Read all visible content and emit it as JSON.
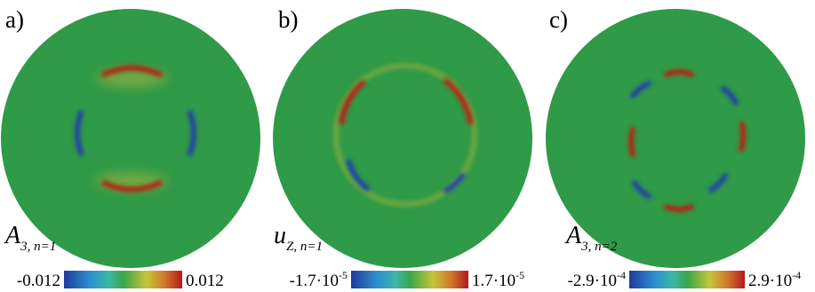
{
  "panels": [
    {
      "label": "a)",
      "quantity": {
        "symbol": "A",
        "subscript": "3, n=1"
      },
      "colorbar": {
        "min": {
          "text": "-0.012"
        },
        "max": {
          "text": "0.012"
        }
      }
    },
    {
      "label": "b)",
      "quantity": {
        "symbol": "u",
        "subscript": "Z, n=1"
      },
      "colorbar": {
        "min": {
          "text": "-1.7·10",
          "sup": "-5"
        },
        "max": {
          "text": "1.7·10",
          "sup": "-5"
        }
      }
    },
    {
      "label": "c)",
      "quantity": {
        "symbol": "A",
        "subscript": "3, n=2"
      },
      "colorbar": {
        "min": {
          "text": "-2.9·10",
          "sup": "-4"
        },
        "max": {
          "text": "2.9·10",
          "sup": "-4"
        }
      }
    }
  ]
}
